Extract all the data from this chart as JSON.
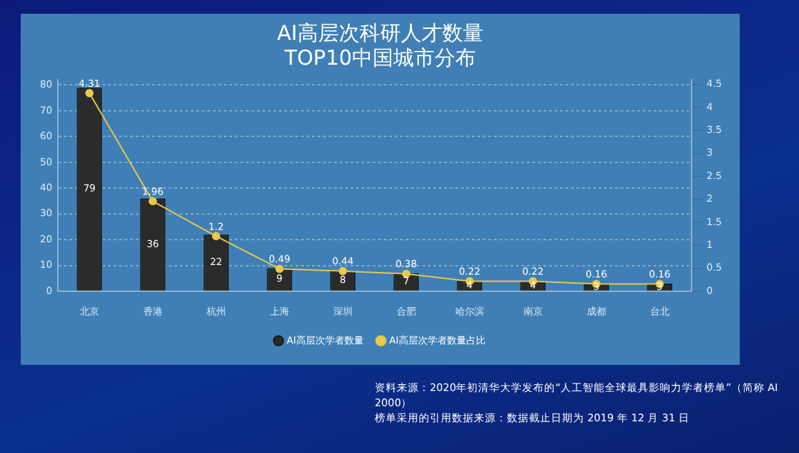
{
  "chart_data": {
    "type": "bar",
    "title": "AI高层次科研人才数量",
    "subtitle": "TOP10中国城市分布",
    "categories": [
      "北京",
      "香港",
      "杭州",
      "上海",
      "深圳",
      "合肥",
      "哈尔滨",
      "南京",
      "成都",
      "台北"
    ],
    "series": [
      {
        "name": "AI高层次学者数量",
        "color": "#2b2b2b",
        "values": [
          79,
          36,
          22,
          9,
          8,
          7,
          4,
          4,
          3,
          3
        ]
      },
      {
        "name": "AI高层次学者数量占比",
        "type": "line",
        "axis": "y2",
        "color": "#e8c94a",
        "values": [
          4.31,
          1.96,
          1.2,
          0.49,
          0.44,
          0.38,
          0.22,
          0.22,
          0.16,
          0.16
        ]
      }
    ],
    "ylim": [
      0,
      82
    ],
    "yticks": [
      0,
      10,
      20,
      30,
      40,
      50,
      60,
      70,
      80
    ],
    "y2lim": [
      0,
      4.6
    ],
    "y2ticks": [
      0,
      0.5,
      1,
      1.5,
      2,
      2.5,
      3,
      3.5,
      4,
      4.5
    ],
    "data_labels": true,
    "grid": "y",
    "legend": "bottom",
    "marker": "circle",
    "annotations": [
      "资料来源：2020年初清华大学发布的“人工智能全球最具影响力学者榜单”（简称 AI 2000）",
      "榜单采用的引用数据来源：数据截止日期为 2019 年 12 月 31 日"
    ]
  }
}
